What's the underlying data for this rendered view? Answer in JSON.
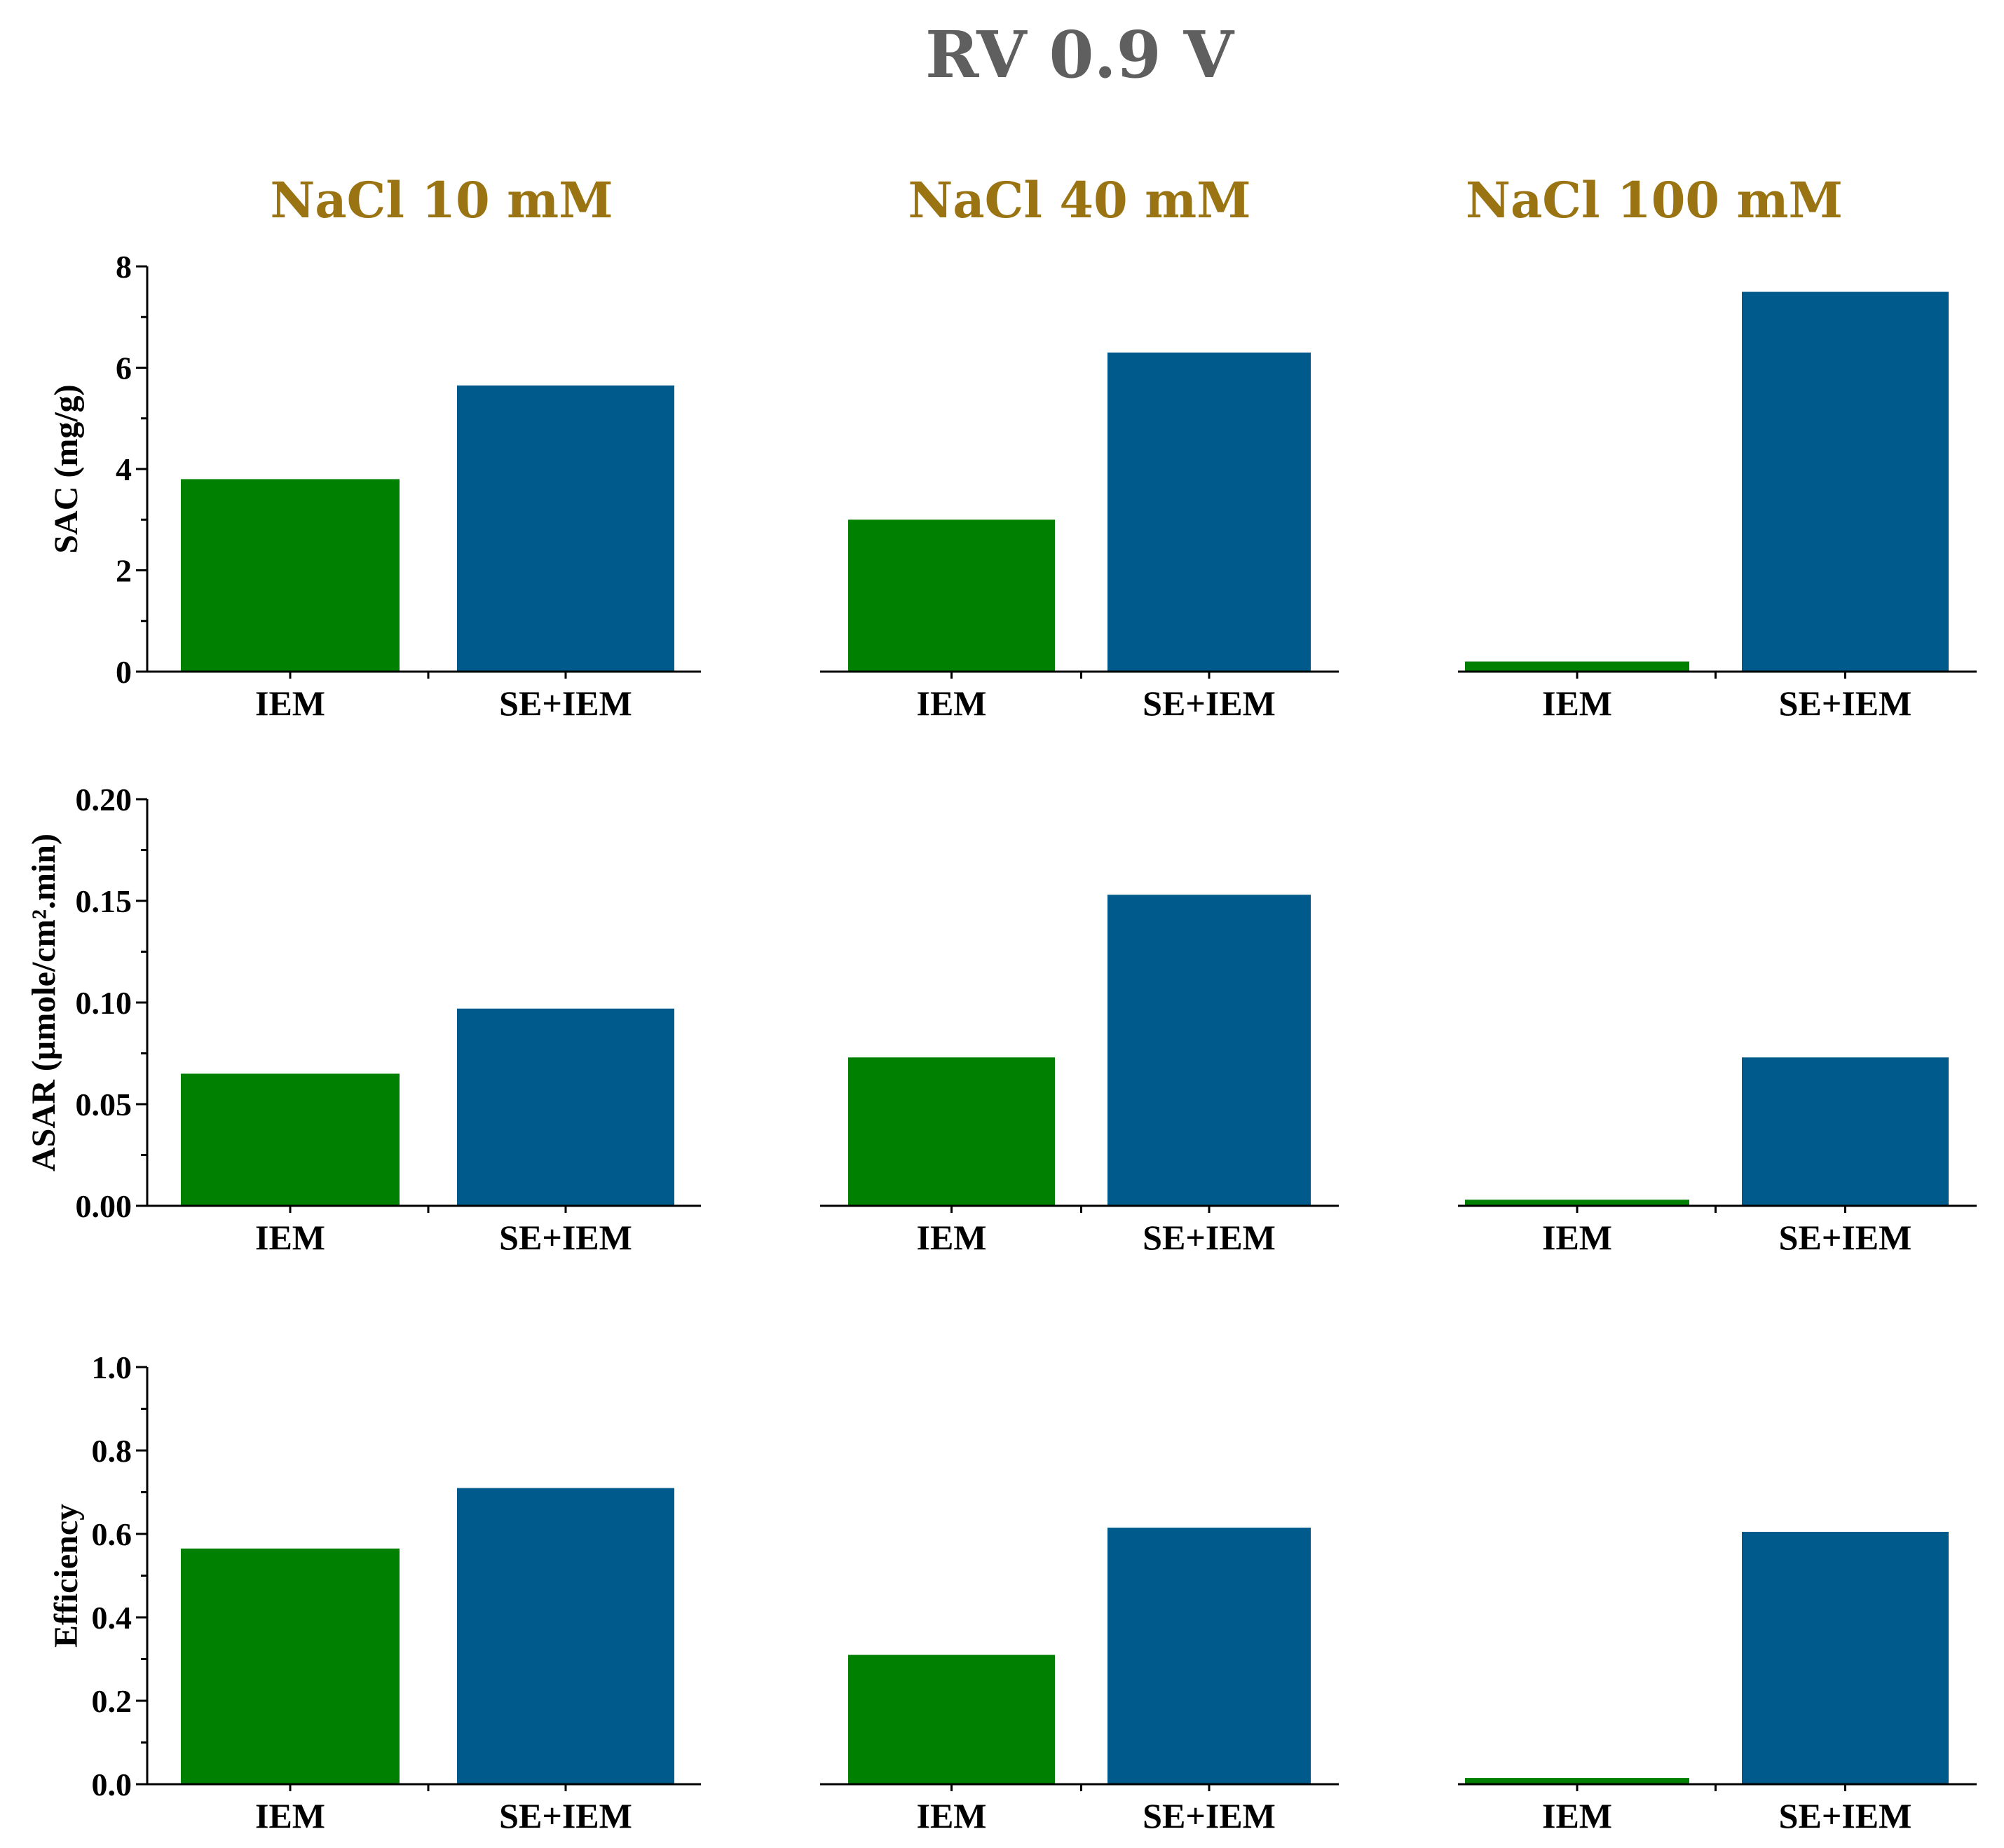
{
  "title": "RV 0.9 V",
  "column_titles": [
    "NaCl 10 mM",
    "NaCl 40 mM",
    "NaCl 100 mM"
  ],
  "colors": {
    "IEM": "#008000",
    "SE+IEM": "#005a8c",
    "title": "#5f5f5f",
    "column_title": "#9a7412"
  },
  "chart_data": [
    {
      "type": "bar",
      "row": 0,
      "col": 0,
      "title": "NaCl 10 mM",
      "ylabel": "SAC (mg/g)",
      "ylim": [
        0,
        8
      ],
      "yticks": [
        0,
        2,
        4,
        6,
        8
      ],
      "tick_labels": [
        "0",
        "2",
        "4",
        "6",
        "8"
      ],
      "categories": [
        "IEM",
        "SE+IEM"
      ],
      "values": [
        3.8,
        5.65
      ]
    },
    {
      "type": "bar",
      "row": 0,
      "col": 1,
      "title": "NaCl 40 mM",
      "ylabel": "",
      "ylim": [
        0,
        8
      ],
      "categories": [
        "IEM",
        "SE+IEM"
      ],
      "values": [
        3.0,
        6.3
      ]
    },
    {
      "type": "bar",
      "row": 0,
      "col": 2,
      "title": "NaCl 100 mM",
      "ylabel": "",
      "ylim": [
        0,
        8
      ],
      "categories": [
        "IEM",
        "SE+IEM"
      ],
      "values": [
        0.2,
        7.5
      ]
    },
    {
      "type": "bar",
      "row": 1,
      "col": 0,
      "ylabel": "ASAR (µmole/cm².min)",
      "ylim": [
        0,
        0.2
      ],
      "yticks": [
        0,
        0.05,
        0.1,
        0.15,
        0.2
      ],
      "tick_labels": [
        "0.00",
        "0.05",
        "0.10",
        "0.15",
        "0.20"
      ],
      "categories": [
        "IEM",
        "SE+IEM"
      ],
      "values": [
        0.065,
        0.097
      ]
    },
    {
      "type": "bar",
      "row": 1,
      "col": 1,
      "ylabel": "",
      "ylim": [
        0,
        0.2
      ],
      "categories": [
        "IEM",
        "SE+IEM"
      ],
      "values": [
        0.073,
        0.153
      ]
    },
    {
      "type": "bar",
      "row": 1,
      "col": 2,
      "ylabel": "",
      "ylim": [
        0,
        0.2
      ],
      "categories": [
        "IEM",
        "SE+IEM"
      ],
      "values": [
        0.003,
        0.073
      ]
    },
    {
      "type": "bar",
      "row": 2,
      "col": 0,
      "ylabel": "Efficiency",
      "ylim": [
        0,
        1.0
      ],
      "yticks": [
        0,
        0.2,
        0.4,
        0.6,
        0.8,
        1.0
      ],
      "tick_labels": [
        "0.0",
        "0.2",
        "0.4",
        "0.6",
        "0.8",
        "1.0"
      ],
      "categories": [
        "IEM",
        "SE+IEM"
      ],
      "values": [
        0.565,
        0.71
      ]
    },
    {
      "type": "bar",
      "row": 2,
      "col": 1,
      "ylabel": "",
      "ylim": [
        0,
        1.0
      ],
      "categories": [
        "IEM",
        "SE+IEM"
      ],
      "values": [
        0.31,
        0.615
      ]
    },
    {
      "type": "bar",
      "row": 2,
      "col": 2,
      "ylabel": "",
      "ylim": [
        0,
        1.0
      ],
      "categories": [
        "IEM",
        "SE+IEM"
      ],
      "values": [
        0.015,
        0.605
      ]
    }
  ]
}
